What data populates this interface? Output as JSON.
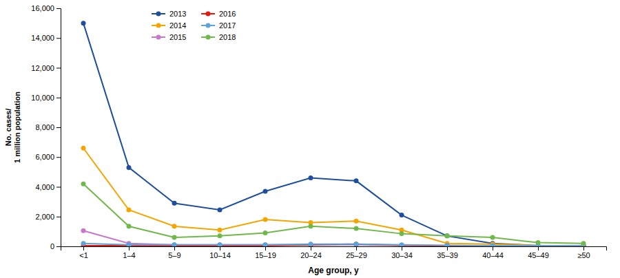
{
  "chart_data": {
    "type": "line",
    "categories": [
      "<1",
      "1–4",
      "5–9",
      "10–14",
      "15–19",
      "20–24",
      "25–29",
      "30–34",
      "35–39",
      "40–44",
      "45–49",
      "≥50"
    ],
    "series": [
      {
        "name": "2013",
        "color": "#1f4e9c",
        "values": [
          15000,
          5300,
          2900,
          2450,
          3700,
          4600,
          4400,
          2100,
          700,
          200,
          50,
          50
        ]
      },
      {
        "name": "2014",
        "color": "#f5a500",
        "values": [
          6600,
          2450,
          1350,
          1100,
          1800,
          1600,
          1700,
          1100,
          200,
          150,
          50,
          50
        ]
      },
      {
        "name": "2015",
        "color": "#c878c8",
        "values": [
          1050,
          200,
          100,
          100,
          100,
          100,
          100,
          75,
          50,
          30,
          20,
          20
        ]
      },
      {
        "name": "2016",
        "color": "#e8180c",
        "values": [
          50,
          50,
          50,
          50,
          50,
          100,
          150,
          75,
          30,
          20,
          10,
          10
        ]
      },
      {
        "name": "2017",
        "color": "#5ba3d9",
        "values": [
          200,
          100,
          100,
          100,
          100,
          150,
          150,
          100,
          75,
          50,
          30,
          30
        ]
      },
      {
        "name": "2018",
        "color": "#70b84a",
        "values": [
          4200,
          1350,
          600,
          700,
          900,
          1350,
          1200,
          850,
          700,
          600,
          250,
          200
        ]
      }
    ],
    "xlabel": "Age group, y",
    "ylabel": "No. cases/\n1 million population",
    "ylim": [
      0,
      16000
    ],
    "yticks": [
      0,
      {
        "value": 2000,
        "label": "2,000"
      },
      {
        "value": 4000,
        "label": "4,000"
      },
      {
        "value": 6000,
        "label": "6,000"
      },
      {
        "value": 8000,
        "label": "8,000"
      },
      {
        "value": 10000,
        "label": "10,000"
      },
      {
        "value": 12000,
        "label": "12,000"
      },
      {
        "value": 14000,
        "label": "14,000"
      },
      {
        "value": 16000,
        "label": "16,000"
      }
    ],
    "marker": "circle",
    "grid": false,
    "legend": "upper left"
  }
}
